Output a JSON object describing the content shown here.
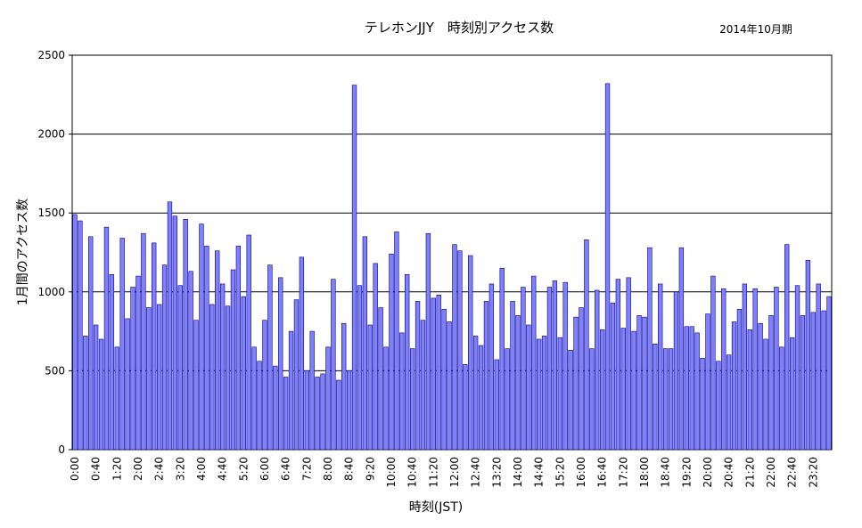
{
  "chart_data": {
    "type": "bar",
    "title": "テレホンJJY　時刻別アクセス数",
    "period": "2014年10月期",
    "xlabel": "時刻(JST)",
    "ylabel": "1月間のアクセス数",
    "ylim": [
      0,
      2500
    ],
    "yticks": [
      0,
      500,
      1000,
      1500,
      2000,
      2500
    ],
    "grid": "horizontal",
    "legend": "none",
    "bar_color": "#8080ff",
    "bar_edge_color": "#000080",
    "x_tick_labels": [
      "0:00",
      "0:40",
      "1:20",
      "2:00",
      "2:40",
      "3:20",
      "4:00",
      "4:40",
      "5:20",
      "6:00",
      "6:40",
      "7:20",
      "8:00",
      "8:40",
      "9:20",
      "10:00",
      "10:40",
      "11:20",
      "12:00",
      "12:40",
      "13:20",
      "14:00",
      "14:40",
      "15:20",
      "16:00",
      "16:40",
      "17:20",
      "18:00",
      "18:40",
      "19:20",
      "20:00",
      "20:40",
      "21:20",
      "22:00",
      "22:40",
      "23:20"
    ],
    "interval_minutes": 10,
    "values": [
      1490,
      1450,
      720,
      1350,
      790,
      700,
      1410,
      1110,
      650,
      1340,
      830,
      1030,
      1100,
      1370,
      900,
      1310,
      920,
      1170,
      1570,
      1480,
      1040,
      1460,
      1130,
      820,
      1430,
      1290,
      920,
      1260,
      1050,
      910,
      1140,
      1290,
      970,
      1360,
      650,
      560,
      820,
      1170,
      530,
      1090,
      460,
      750,
      950,
      1220,
      500,
      750,
      460,
      480,
      650,
      1080,
      440,
      800,
      500,
      2310,
      1040,
      1350,
      790,
      1180,
      900,
      650,
      1240,
      1380,
      740,
      1110,
      640,
      940,
      820,
      1370,
      960,
      980,
      890,
      810,
      1300,
      1260,
      540,
      1230,
      720,
      660,
      940,
      1050,
      570,
      1150,
      640,
      940,
      850,
      1030,
      790,
      1100,
      700,
      720,
      1030,
      1070,
      710,
      1060,
      630,
      840,
      900,
      1330,
      640,
      1010,
      760,
      2320,
      930,
      1080,
      770,
      1090,
      750,
      850,
      840,
      1280,
      670,
      1050,
      640,
      640,
      1000,
      1280,
      780,
      780,
      740,
      580,
      860,
      1100,
      560,
      1020,
      600,
      810,
      890,
      1050,
      760,
      1020,
      800,
      700,
      850,
      1030,
      650,
      1300,
      710,
      1040,
      850,
      1200,
      870,
      1050,
      880,
      970
    ]
  }
}
